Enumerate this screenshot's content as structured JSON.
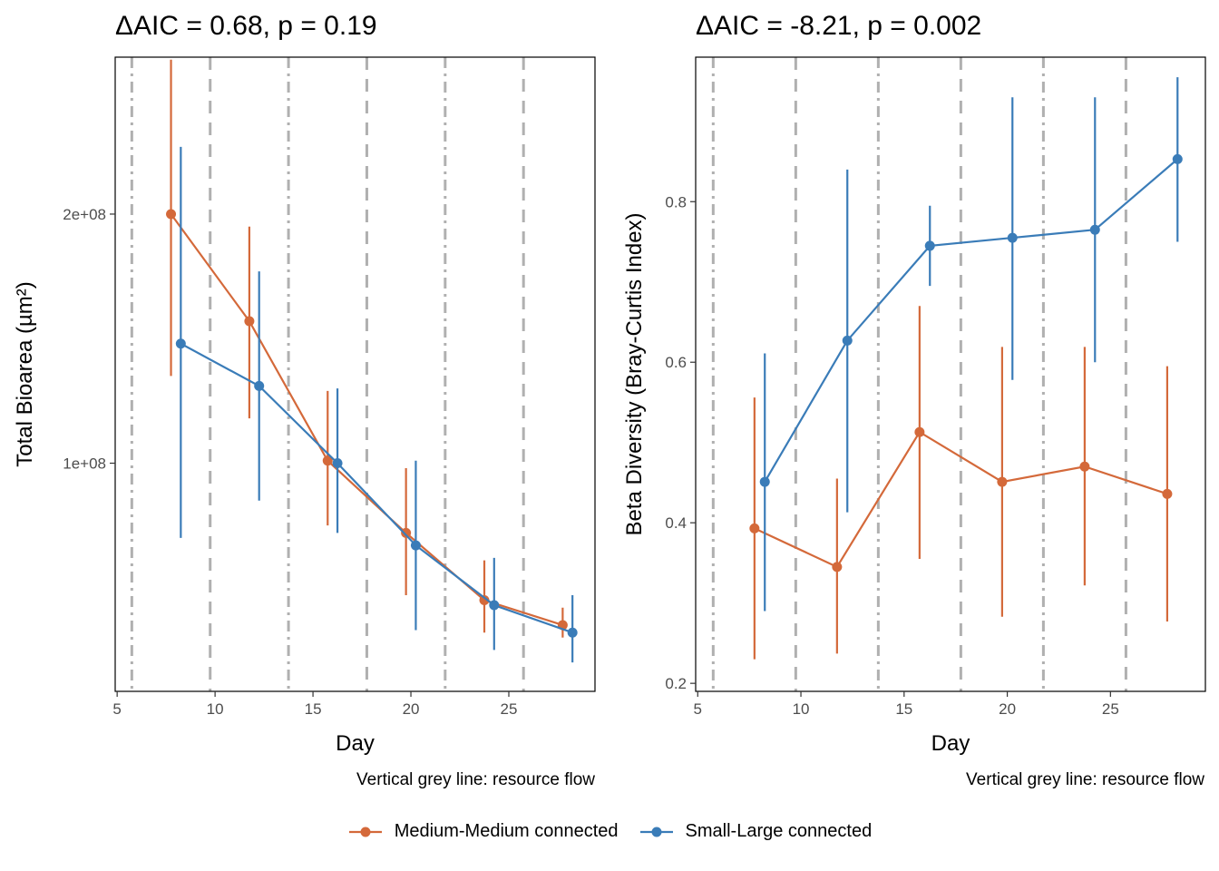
{
  "colors": {
    "medium": "#D4693A",
    "small": "#3A7CB8",
    "resource_line": "#B0B0B0"
  },
  "chart_data": [
    {
      "type": "line",
      "title": "ΔAIC = 0.68, p = 0.19",
      "xlabel": "Day",
      "ylabel": "Total Bioarea (µm²)",
      "caption": "Vertical grey line: resource flow",
      "xlim": [
        4.9,
        29.4
      ],
      "ylim": [
        8400000,
        263000000
      ],
      "xticks": [
        5,
        10,
        15,
        20,
        25
      ],
      "xtick_labels": [
        "5",
        "10",
        "15",
        "20",
        "25"
      ],
      "yticks": [
        100000000,
        200000000
      ],
      "ytick_labels": [
        "1e+08",
        "2e+08"
      ],
      "resource_flow_days": [
        5.75,
        9.75,
        13.75,
        17.75,
        21.75,
        25.75
      ],
      "series": [
        {
          "name": "Medium-Medium connected",
          "color_key": "medium",
          "x": [
            7.75,
            11.75,
            15.75,
            19.75,
            23.75,
            27.75
          ],
          "y": [
            200000000,
            157000000,
            101000000,
            72000000,
            45000000,
            35000000
          ],
          "err_low": [
            135000000,
            118000000,
            75000000,
            47000000,
            32000000,
            30000000
          ],
          "err_high": [
            262000000,
            195000000,
            129000000,
            98000000,
            61000000,
            42000000
          ]
        },
        {
          "name": "Small-Large connected",
          "color_key": "small",
          "x": [
            8.25,
            12.25,
            16.25,
            20.25,
            24.25,
            28.25
          ],
          "y": [
            148000000,
            131000000,
            100000000,
            67000000,
            43000000,
            32000000
          ],
          "err_low": [
            70000000,
            85000000,
            72000000,
            33000000,
            25000000,
            20000000
          ],
          "err_high": [
            227000000,
            177000000,
            130000000,
            101000000,
            62000000,
            47000000
          ]
        }
      ]
    },
    {
      "type": "line",
      "title": "ΔAIC = -8.21, p = 0.002",
      "xlabel": "Day",
      "ylabel": "Beta Diversity (Bray-Curtis Index)",
      "caption": "Vertical grey line: resource flow",
      "xlim": [
        4.9,
        29.6
      ],
      "ylim": [
        0.19,
        0.98
      ],
      "xticks": [
        5,
        10,
        15,
        20,
        25
      ],
      "xtick_labels": [
        "5",
        "10",
        "15",
        "20",
        "25"
      ],
      "yticks": [
        0.2,
        0.4,
        0.6,
        0.8
      ],
      "ytick_labels": [
        "0.2",
        "0.4",
        "0.6",
        "0.8"
      ],
      "resource_flow_days": [
        5.75,
        9.75,
        13.75,
        17.75,
        21.75,
        25.75
      ],
      "series": [
        {
          "name": "Medium-Medium connected",
          "color_key": "medium",
          "x": [
            7.75,
            11.75,
            15.75,
            19.75,
            23.75,
            27.75
          ],
          "y": [
            0.393,
            0.345,
            0.513,
            0.451,
            0.47,
            0.436
          ],
          "err_low": [
            0.23,
            0.237,
            0.355,
            0.283,
            0.322,
            0.277
          ],
          "err_high": [
            0.556,
            0.455,
            0.67,
            0.619,
            0.619,
            0.595
          ]
        },
        {
          "name": "Small-Large connected",
          "color_key": "small",
          "x": [
            8.25,
            12.25,
            16.25,
            20.25,
            24.25,
            28.25
          ],
          "y": [
            0.451,
            0.627,
            0.745,
            0.755,
            0.765,
            0.853
          ],
          "err_low": [
            0.29,
            0.413,
            0.695,
            0.578,
            0.6,
            0.75
          ],
          "err_high": [
            0.611,
            0.84,
            0.795,
            0.93,
            0.93,
            0.955
          ]
        }
      ]
    }
  ],
  "legend": {
    "items": [
      {
        "label": "Medium-Medium connected",
        "color_key": "medium"
      },
      {
        "label": "Small-Large connected",
        "color_key": "small"
      }
    ]
  }
}
